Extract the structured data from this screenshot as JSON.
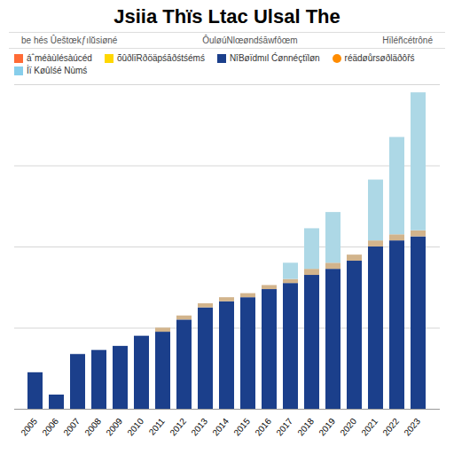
{
  "chart_data": {
    "type": "bar",
    "stacked": true,
    "title": "Jsiia Thïs Ltac Ulsal The",
    "subtitle": [
      "be hés Ûeštœkƒılŭsiøné",
      "ÔuløúNlœøndśāwfôœm",
      "Hïléñcétrôné"
    ],
    "categories": [
      "2005",
      "2006",
      "2007",
      "2008",
      "2009",
      "2010",
      "2011",
      "2012",
      "2013",
      "2014",
      "2015",
      "2016",
      "2017",
      "2018",
      "2019",
      "2020",
      "2021",
      "2022",
      "2023"
    ],
    "series": [
      {
        "color": "#1B3F8B",
        "values": [
          18,
          7,
          27,
          29,
          31,
          36,
          38,
          44,
          50,
          53,
          55,
          59,
          62,
          66,
          69,
          73,
          80,
          83,
          85
        ]
      },
      {
        "color": "#D2B48C",
        "values": [
          0,
          0,
          0,
          0,
          0,
          0,
          2,
          2,
          2,
          2,
          2,
          2,
          2,
          3,
          3,
          3,
          3,
          3,
          3
        ]
      },
      {
        "color": "#ADD8E6",
        "values": [
          0,
          0,
          0,
          0,
          0,
          0,
          0,
          0,
          0,
          0,
          0,
          0,
          8,
          20,
          25,
          0,
          30,
          48,
          68
        ]
      }
    ],
    "legend_entries": [
      {
        "label": "áˆméàùlésàúcéd",
        "color": "#FF6B35",
        "marker": "square"
      },
      {
        "label": "õûðlïRðöäpśāðśtśémś",
        "color": "#FFD700",
        "marker": "square"
      },
      {
        "label": "NîBøïdmıl Ćønnéçtïløn",
        "color": "#1B3F8B",
        "marker": "square"
      },
      {
        "label": "réädøůrsøðläðôřś",
        "color": "#FF8C00",
        "marker": "circle"
      },
      {
        "label": "İï Køûlśé Nùmś",
        "color": "#87CEEB",
        "marker": "square"
      }
    ],
    "ylim": [
      0,
      160
    ],
    "yticks": [
      40,
      80,
      120,
      160
    ],
    "grid": true,
    "tick_labels": "x"
  }
}
